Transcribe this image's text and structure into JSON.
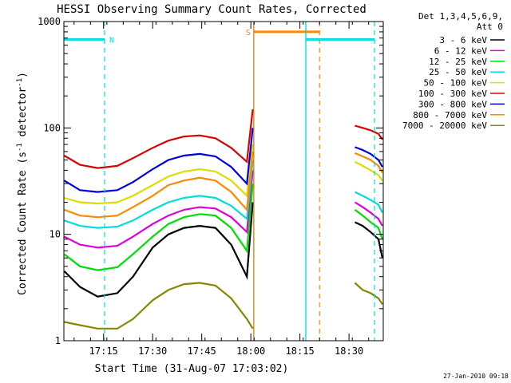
{
  "chart_data": {
    "type": "line",
    "title": "HESSI Observing Summary Count Rates, Corrected",
    "xlabel": "Start Time (31-Aug-07 17:03:02)",
    "ylabel_main": "Corrected Count Rate (s",
    "ylabel_sup1": "-1",
    "ylabel_mid": " detector",
    "ylabel_sup2": "-1",
    "ylabel_end": ")",
    "y_scale": "log",
    "ylim": [
      1,
      1000
    ],
    "xlim": [
      17.0478,
      18.6744
    ],
    "x_ticks": [
      {
        "label": "17:15",
        "x": 17.25
      },
      {
        "label": "17:30",
        "x": 17.5
      },
      {
        "label": "17:45",
        "x": 17.75
      },
      {
        "label": "18:00",
        "x": 18.0
      },
      {
        "label": "18:15",
        "x": 18.25
      },
      {
        "label": "18:30",
        "x": 18.5
      }
    ],
    "y_ticks": [
      {
        "label": "1",
        "y": 1
      },
      {
        "label": "10",
        "y": 10
      },
      {
        "label": "100",
        "y": 100
      },
      {
        "label": "1000",
        "y": 1000
      }
    ],
    "legend_header": [
      "Det 1,3,4,5,6,9,",
      "Att 0"
    ],
    "legend_placement": "right",
    "timestamp": "27-Jan-2010 09:18",
    "series": [
      {
        "name": "3 - 6 keV",
        "color": "#000000",
        "x": [
          17.05,
          17.13,
          17.22,
          17.32,
          17.4,
          17.5,
          17.58,
          17.66,
          17.74,
          17.82,
          17.9,
          17.98,
          18.01
        ],
        "y": [
          4.5,
          3.2,
          2.6,
          2.8,
          4.0,
          7.5,
          10.0,
          11.5,
          12.0,
          11.5,
          8.0,
          4.0,
          20
        ]
      },
      {
        "name": "6 - 12 keV",
        "color": "#dd00dd",
        "x": [
          17.05,
          17.13,
          17.22,
          17.32,
          17.4,
          17.5,
          17.58,
          17.66,
          17.74,
          17.82,
          17.9,
          17.98,
          18.01
        ],
        "y": [
          9.5,
          8.0,
          7.5,
          7.8,
          9.5,
          12.5,
          15.0,
          17.0,
          18.0,
          17.5,
          14.5,
          10.5,
          40
        ]
      },
      {
        "name": "12 - 25 keV",
        "color": "#00dd00",
        "x": [
          17.05,
          17.13,
          17.22,
          17.32,
          17.4,
          17.5,
          17.58,
          17.66,
          17.74,
          17.82,
          17.9,
          17.98,
          18.01
        ],
        "y": [
          6.5,
          5.0,
          4.6,
          4.9,
          6.5,
          9.5,
          12.5,
          14.5,
          15.5,
          15.0,
          11.5,
          7.0,
          30
        ]
      },
      {
        "name": "25 - 50 keV",
        "color": "#00dddd",
        "x": [
          17.05,
          17.13,
          17.22,
          17.32,
          17.4,
          17.5,
          17.58,
          17.66,
          17.74,
          17.82,
          17.9,
          17.98,
          18.01
        ],
        "y": [
          13.5,
          12.0,
          11.5,
          11.8,
          13.5,
          17.0,
          20.0,
          22.0,
          23.0,
          22.0,
          18.5,
          14.0,
          50
        ]
      },
      {
        "name": "50 - 100 keV",
        "color": "#dddd00",
        "x": [
          17.05,
          17.13,
          17.22,
          17.32,
          17.4,
          17.5,
          17.58,
          17.66,
          17.74,
          17.82,
          17.9,
          17.98,
          18.01
        ],
        "y": [
          22,
          20,
          19.5,
          20,
          23,
          29,
          35,
          39,
          41,
          39,
          32,
          23,
          70
        ]
      },
      {
        "name": "100 - 300 keV",
        "color": "#dd0000",
        "x": [
          17.05,
          17.13,
          17.22,
          17.32,
          17.4,
          17.5,
          17.58,
          17.66,
          17.74,
          17.82,
          17.9,
          17.98,
          18.01
        ],
        "y": [
          55,
          45,
          42,
          44,
          52,
          65,
          76,
          83,
          85,
          80,
          65,
          48,
          150
        ]
      },
      {
        "name": "300 - 800 keV",
        "color": "#0000dd",
        "x": [
          17.05,
          17.13,
          17.22,
          17.32,
          17.4,
          17.5,
          17.58,
          17.66,
          17.74,
          17.82,
          17.9,
          17.98,
          18.01
        ],
        "y": [
          32,
          26,
          25,
          26,
          31,
          41,
          50,
          55,
          57,
          54,
          43,
          30,
          100
        ]
      },
      {
        "name": "800 - 7000 keV",
        "color": "#ff8800",
        "x": [
          17.05,
          17.13,
          17.22,
          17.32,
          17.4,
          17.5,
          17.58,
          17.66,
          17.74,
          17.82,
          17.9,
          17.98,
          18.01
        ],
        "y": [
          17,
          15,
          14.5,
          15,
          18,
          23,
          29,
          32,
          34,
          32,
          25,
          17,
          60
        ]
      },
      {
        "name": "7000 - 20000 keV",
        "color": "#888800",
        "x": [
          17.05,
          17.13,
          17.22,
          17.32,
          17.4,
          17.5,
          17.58,
          17.66,
          17.74,
          17.82,
          17.9,
          17.98,
          18.01
        ],
        "y": [
          1.5,
          1.4,
          1.3,
          1.3,
          1.6,
          2.4,
          3.0,
          3.4,
          3.5,
          3.3,
          2.5,
          1.6,
          1.3
        ]
      }
    ],
    "series_after_gap": {
      "x": [
        18.53,
        18.57,
        18.61,
        18.65,
        18.67
      ],
      "y": {
        "3 - 6 keV": [
          13,
          12,
          10.5,
          9,
          6
        ],
        "6 - 12 keV": [
          20,
          18,
          16,
          14,
          12
        ],
        "12 - 25 keV": [
          17,
          15,
          13,
          11.5,
          9
        ],
        "25 - 50 keV": [
          25,
          23,
          21,
          19,
          16
        ],
        "50 - 100 keV": [
          48,
          44,
          40,
          36,
          32
        ],
        "100 - 300 keV": [
          105,
          100,
          95,
          88,
          78
        ],
        "300 - 800 keV": [
          66,
          62,
          57,
          50,
          43
        ],
        "800 - 7000 keV": [
          58,
          54,
          50,
          44,
          38
        ],
        "7000 - 20000 keV": [
          3.5,
          3.0,
          2.8,
          2.5,
          2.2
        ]
      }
    },
    "annotations": [
      {
        "label": "N",
        "color": "#00dddd",
        "bar_x": [
          17.05,
          17.255
        ],
        "y": 680,
        "dashed_x": 17.255
      },
      {
        "label": "S",
        "color": "#ff8800",
        "bar_x": [
          18.015,
          18.35
        ],
        "y": 800,
        "dashed_x": 18.35
      },
      {
        "label": "",
        "color": "#00dddd",
        "bar_x": [
          18.28,
          18.63
        ],
        "y": 680,
        "solid_x": 18.28,
        "dashed_x": 18.63
      }
    ],
    "vertical_markers": [
      {
        "x": 18.015,
        "color": "#cc7700",
        "style": "solid"
      },
      {
        "x": 18.28,
        "color": "#00dddd",
        "style": "solid"
      }
    ]
  }
}
